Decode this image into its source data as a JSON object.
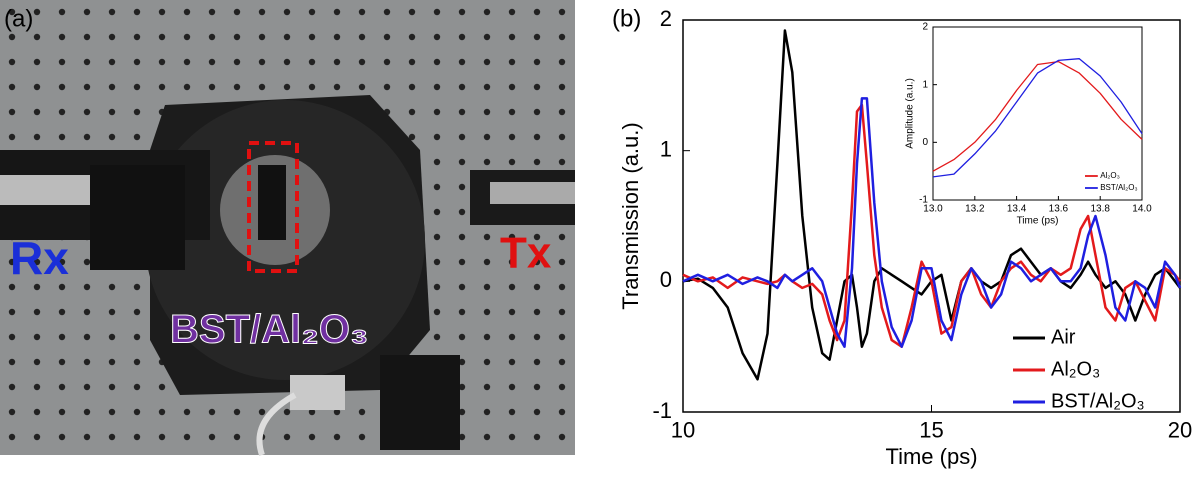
{
  "panels": {
    "a": {
      "label": "(a)",
      "annotations": {
        "rx": "Rx",
        "tx": "Tx",
        "sample": "BST/Al₂O₃"
      }
    },
    "b": {
      "label": "(b)"
    }
  },
  "chart_data": [
    {
      "type": "line",
      "xlabel": "Time (ps)",
      "ylabel": "Transmission (a.u.)",
      "xlim": [
        10,
        20
      ],
      "ylim": [
        -1,
        2
      ],
      "xticks": [
        10,
        15,
        20
      ],
      "yticks": [
        -1,
        0,
        1,
        2
      ],
      "legend": "lower right",
      "x": [
        10,
        10.3,
        10.6,
        10.9,
        11.2,
        11.5,
        11.7,
        11.9,
        12.05,
        12.2,
        12.4,
        12.6,
        12.8,
        12.95,
        13.1,
        13.25,
        13.4,
        13.5,
        13.6,
        13.7,
        13.85,
        14.0,
        14.2,
        14.4,
        14.6,
        14.8,
        15.0,
        15.2,
        15.4,
        15.6,
        15.8,
        16.0,
        16.2,
        16.4,
        16.6,
        16.8,
        17.0,
        17.2,
        17.4,
        17.6,
        17.8,
        18.0,
        18.15,
        18.3,
        18.5,
        18.7,
        18.9,
        19.1,
        19.3,
        19.5,
        19.7,
        19.9,
        20
      ],
      "series": [
        {
          "name": "Air",
          "color": "#000000",
          "values": [
            0,
            0.02,
            -0.05,
            -0.2,
            -0.55,
            -0.75,
            -0.4,
            0.9,
            1.92,
            1.6,
            0.5,
            -0.2,
            -0.55,
            -0.6,
            -0.3,
            0.0,
            0.05,
            -0.2,
            -0.5,
            -0.4,
            0.0,
            0.1,
            0.05,
            0.0,
            -0.05,
            -0.1,
            0.0,
            0.05,
            -0.3,
            0.0,
            0.1,
            0.0,
            -0.05,
            0.0,
            0.2,
            0.25,
            0.15,
            0.05,
            0.1,
            0.0,
            -0.05,
            0.05,
            0.15,
            0.05,
            -0.05,
            0.0,
            -0.1,
            -0.3,
            -0.1,
            0.05,
            0.1,
            0.0,
            -0.05
          ]
        },
        {
          "name": "Al₂O₃",
          "color": "#e31a1c",
          "values": [
            0.05,
            0.0,
            0.03,
            -0.05,
            0.03,
            0.0,
            -0.02,
            0.0,
            0.05,
            0.0,
            -0.05,
            -0.02,
            -0.1,
            -0.3,
            -0.45,
            -0.3,
            0.6,
            1.3,
            1.35,
            0.9,
            0.2,
            -0.2,
            -0.45,
            -0.5,
            -0.2,
            0.15,
            0.0,
            -0.4,
            -0.35,
            0.0,
            0.1,
            -0.1,
            -0.2,
            0.0,
            0.1,
            0.15,
            0.05,
            0.0,
            0.1,
            0.05,
            0.1,
            0.4,
            0.5,
            0.2,
            -0.2,
            -0.3,
            -0.05,
            0.0,
            -0.15,
            -0.3,
            0.1,
            0.05,
            0.0
          ]
        },
        {
          "name": "BST/Al₂O₃",
          "color": "#1f1fe0",
          "values": [
            0.0,
            0.05,
            0.0,
            0.05,
            -0.02,
            0.03,
            0.0,
            -0.05,
            0.05,
            0.0,
            0.05,
            0.1,
            0.0,
            -0.2,
            -0.4,
            -0.5,
            0.1,
            0.9,
            1.4,
            1.4,
            0.6,
            0.0,
            -0.35,
            -0.5,
            -0.3,
            0.1,
            0.1,
            -0.3,
            -0.45,
            -0.1,
            0.1,
            0.0,
            -0.2,
            -0.1,
            0.15,
            0.1,
            0.0,
            0.05,
            0.1,
            0.0,
            0.0,
            0.1,
            0.35,
            0.5,
            0.2,
            -0.2,
            -0.3,
            0.0,
            -0.05,
            -0.2,
            0.15,
            0.05,
            -0.05
          ]
        }
      ]
    },
    {
      "type": "line",
      "xlabel": "Time (ps)",
      "ylabel": "Amplitude (a.u.)",
      "xlim": [
        13,
        14
      ],
      "ylim": [
        -1,
        2
      ],
      "xticks": [
        {
          "value": 13,
          "label": "13.0"
        },
        13.2,
        13.4,
        13.6,
        13.8,
        {
          "value": 14,
          "label": "14.0"
        }
      ],
      "yticks": [
        -1,
        0,
        1,
        2
      ],
      "legend": "lower right",
      "x": [
        13.0,
        13.1,
        13.2,
        13.3,
        13.4,
        13.5,
        13.6,
        13.7,
        13.8,
        13.9,
        14.0
      ],
      "series": [
        {
          "name": "Al₂O₃",
          "color": "#e31a1c",
          "values": [
            -0.5,
            -0.3,
            0.0,
            0.4,
            0.9,
            1.35,
            1.4,
            1.2,
            0.85,
            0.4,
            0.05
          ]
        },
        {
          "name": "BST/Al₂O₃",
          "color": "#1f1fe0",
          "values": [
            -0.6,
            -0.55,
            -0.2,
            0.2,
            0.7,
            1.2,
            1.42,
            1.45,
            1.15,
            0.7,
            0.15
          ]
        }
      ]
    }
  ]
}
